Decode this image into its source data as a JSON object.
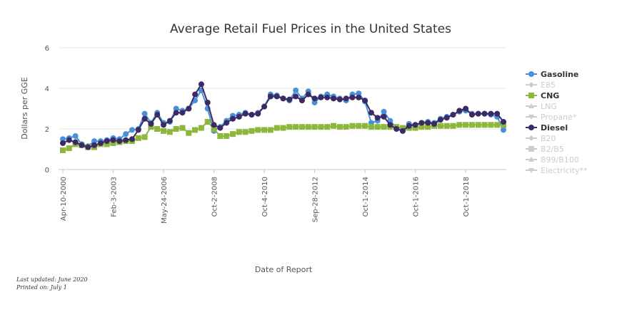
{
  "footer": {
    "updated": "Last updated: June 2020",
    "printed": "Printed on: July 1"
  },
  "chart_data": {
    "type": "line",
    "title": "Average Retail Fuel Prices in the United States",
    "xlabel": "Date of Report",
    "ylabel": "Dollars per GGE",
    "ylim": [
      0,
      6
    ],
    "yticks": [
      0,
      2,
      4,
      6
    ],
    "xticks": [
      "Apr-10-2000",
      "Feb-3-2003",
      "May-24-2006",
      "Oct-2-2008",
      "Oct-4-2010",
      "Sep-28-2012",
      "Oct-1-2014",
      "Oct-1-2016",
      "Oct-1-2018"
    ],
    "xtick_index": [
      0,
      8,
      16,
      24,
      32,
      40,
      48,
      56,
      64
    ],
    "n_points": 71,
    "grid": true,
    "legend_position": "right",
    "colors": {
      "gasoline": "#4a90d9",
      "cng": "#8cb63c",
      "diesel": "#3b2a63",
      "disabled": "#cccccc"
    },
    "legend": [
      {
        "name": "Gasoline",
        "active": true,
        "color": "#4a90d9",
        "marker": "circle"
      },
      {
        "name": "E85",
        "active": false,
        "color": "#cccccc",
        "marker": "diamond"
      },
      {
        "name": "CNG",
        "active": true,
        "color": "#8cb63c",
        "marker": "square"
      },
      {
        "name": "LNG",
        "active": false,
        "color": "#cccccc",
        "marker": "triangle"
      },
      {
        "name": "Propane*",
        "active": false,
        "color": "#cccccc",
        "marker": "triangle-down"
      },
      {
        "name": "Diesel",
        "active": true,
        "color": "#3b2a63",
        "marker": "circle"
      },
      {
        "name": "B20",
        "active": false,
        "color": "#cccccc",
        "marker": "diamond"
      },
      {
        "name": "B2/B5",
        "active": false,
        "color": "#cccccc",
        "marker": "square"
      },
      {
        "name": "B99/B100",
        "active": false,
        "color": "#cccccc",
        "marker": "triangle"
      },
      {
        "name": "Electricity**",
        "active": false,
        "color": "#cccccc",
        "marker": "triangle-down"
      }
    ],
    "series": [
      {
        "name": "Gasoline",
        "color": "#4a90d9",
        "marker": "circle",
        "values": [
          1.5,
          1.55,
          1.65,
          1.25,
          1.15,
          1.4,
          1.4,
          1.45,
          1.55,
          1.5,
          1.75,
          1.95,
          2.0,
          2.75,
          2.3,
          2.8,
          2.3,
          2.35,
          3.0,
          2.9,
          3.0,
          3.4,
          3.9,
          3.0,
          1.9,
          2.1,
          2.4,
          2.65,
          2.7,
          2.8,
          2.7,
          2.8,
          3.1,
          3.7,
          3.65,
          3.5,
          3.4,
          3.9,
          3.5,
          3.85,
          3.3,
          3.6,
          3.7,
          3.6,
          3.5,
          3.4,
          3.7,
          3.75,
          3.35,
          2.3,
          2.4,
          2.85,
          2.4,
          2.05,
          1.9,
          2.25,
          2.2,
          2.3,
          2.35,
          2.3,
          2.5,
          2.6,
          2.7,
          2.85,
          2.9,
          2.75,
          2.75,
          2.75,
          2.7,
          2.6,
          1.95
        ]
      },
      {
        "name": "CNG",
        "color": "#8cb63c",
        "marker": "square",
        "values": [
          0.95,
          1.05,
          1.25,
          1.2,
          1.1,
          1.1,
          1.25,
          1.25,
          1.3,
          1.35,
          1.4,
          1.4,
          1.55,
          1.6,
          2.1,
          2.0,
          1.9,
          1.85,
          2.0,
          2.05,
          1.8,
          1.95,
          2.05,
          2.35,
          2.0,
          1.65,
          1.65,
          1.75,
          1.85,
          1.85,
          1.9,
          1.95,
          1.95,
          1.95,
          2.05,
          2.05,
          2.1,
          2.1,
          2.1,
          2.1,
          2.1,
          2.1,
          2.1,
          2.15,
          2.1,
          2.1,
          2.15,
          2.15,
          2.15,
          2.1,
          2.1,
          2.1,
          2.1,
          2.1,
          2.05,
          2.05,
          2.05,
          2.1,
          2.1,
          2.15,
          2.15,
          2.15,
          2.15,
          2.2,
          2.2,
          2.2,
          2.2,
          2.2,
          2.2,
          2.2,
          2.2
        ]
      },
      {
        "name": "Diesel",
        "color": "#3b2a63",
        "marker": "circle",
        "values": [
          1.3,
          1.45,
          1.35,
          1.2,
          1.1,
          1.2,
          1.3,
          1.4,
          1.45,
          1.4,
          1.45,
          1.5,
          1.95,
          2.5,
          2.25,
          2.7,
          2.2,
          2.4,
          2.8,
          2.8,
          3.0,
          3.7,
          4.2,
          3.3,
          2.2,
          2.05,
          2.3,
          2.5,
          2.6,
          2.75,
          2.7,
          2.75,
          3.1,
          3.6,
          3.6,
          3.5,
          3.45,
          3.6,
          3.4,
          3.7,
          3.5,
          3.55,
          3.55,
          3.5,
          3.45,
          3.5,
          3.55,
          3.55,
          3.4,
          2.8,
          2.55,
          2.6,
          2.2,
          2.0,
          1.9,
          2.15,
          2.2,
          2.3,
          2.3,
          2.25,
          2.45,
          2.55,
          2.7,
          2.9,
          3.0,
          2.7,
          2.75,
          2.75,
          2.75,
          2.75,
          2.35
        ]
      }
    ]
  }
}
